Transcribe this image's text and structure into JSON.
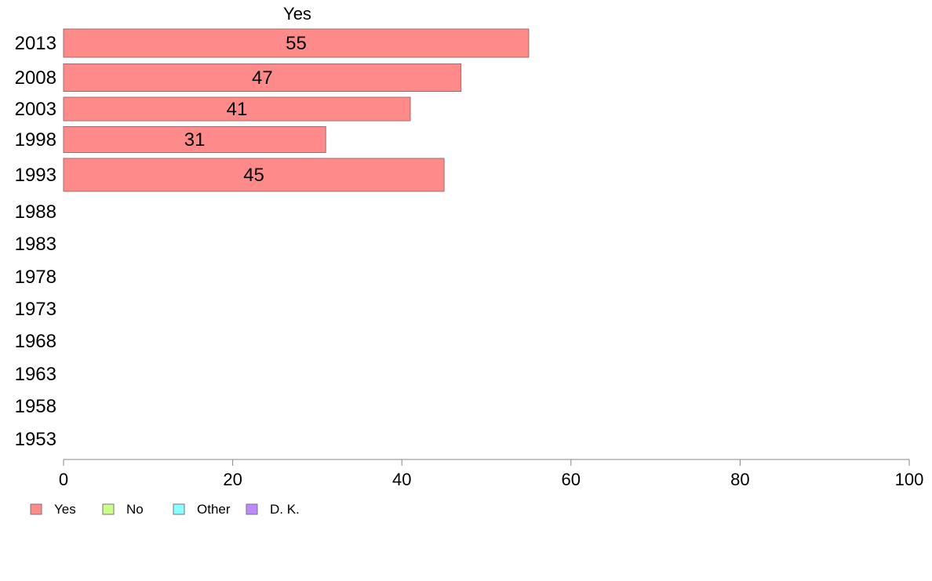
{
  "chart_data": {
    "type": "bar",
    "orientation": "horizontal",
    "title": "Yes",
    "categories": [
      "2013",
      "2008",
      "2003",
      "1998",
      "1993",
      "1988",
      "1983",
      "1978",
      "1973",
      "1968",
      "1963",
      "1958",
      "1953"
    ],
    "series": [
      {
        "name": "Yes",
        "color": "#ff8a8a",
        "values": [
          55,
          47,
          41,
          31,
          45,
          null,
          null,
          null,
          null,
          null,
          null,
          null,
          null
        ]
      }
    ],
    "data_labels": [
      "55",
      "47",
      "41",
      "31",
      "45"
    ],
    "xlim": [
      0,
      100
    ],
    "xticks": [
      "0",
      "20",
      "40",
      "60",
      "80",
      "100"
    ],
    "grid": false,
    "legend_position": "bottom-left",
    "legend": [
      {
        "label": "Yes",
        "color": "#ff8a8a"
      },
      {
        "label": "No",
        "color": "#ccff8a"
      },
      {
        "label": "Other",
        "color": "#8affff"
      },
      {
        "label": "D. K.",
        "color": "#bb8aff"
      }
    ]
  }
}
